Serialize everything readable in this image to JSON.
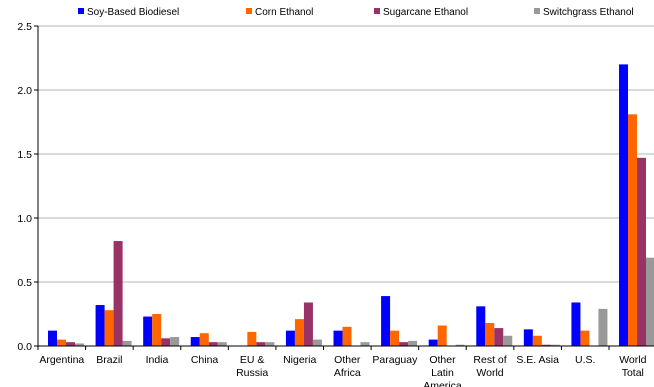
{
  "chart_data": {
    "type": "bar",
    "title": "",
    "xlabel": "",
    "ylabel": "",
    "ylim": [
      0,
      2.5
    ],
    "yticks": [
      "0.0",
      "0.5",
      "1.0",
      "1.5",
      "2.0",
      "2.5"
    ],
    "grid": "horizontal",
    "legend_position": "top",
    "categories": [
      [
        "Argentina"
      ],
      [
        "Brazil"
      ],
      [
        "India"
      ],
      [
        "China"
      ],
      [
        "EU &",
        "Russia"
      ],
      [
        "Nigeria"
      ],
      [
        "Other",
        "Africa"
      ],
      [
        "Paraguay"
      ],
      [
        "Other",
        "Latin",
        "America"
      ],
      [
        "Rest of",
        "World"
      ],
      [
        "S.E. Asia"
      ],
      [
        "U.S."
      ],
      [
        "World",
        "Total"
      ]
    ],
    "series": [
      {
        "name": "Soy-Based Biodiesel",
        "color": "#0000ff",
        "values": [
          0.12,
          0.32,
          0.23,
          0.07,
          0.0,
          0.12,
          0.12,
          0.39,
          0.05,
          0.31,
          0.13,
          0.34,
          2.2
        ]
      },
      {
        "name": "Corn Ethanol",
        "color": "#ff6600",
        "values": [
          0.05,
          0.28,
          0.25,
          0.1,
          0.11,
          0.21,
          0.15,
          0.12,
          0.16,
          0.18,
          0.08,
          0.12,
          1.81
        ]
      },
      {
        "name": "Sugarcane Ethanol",
        "color": "#993366",
        "values": [
          0.03,
          0.82,
          0.06,
          0.03,
          0.03,
          0.34,
          0.0,
          0.03,
          0.0,
          0.14,
          0.01,
          0.0,
          1.47
        ]
      },
      {
        "name": "Switchgrass Ethanol",
        "color": "#999999",
        "values": [
          0.02,
          0.04,
          0.07,
          0.03,
          0.03,
          0.05,
          0.03,
          0.04,
          0.01,
          0.08,
          0.01,
          0.29,
          0.69
        ]
      }
    ]
  }
}
